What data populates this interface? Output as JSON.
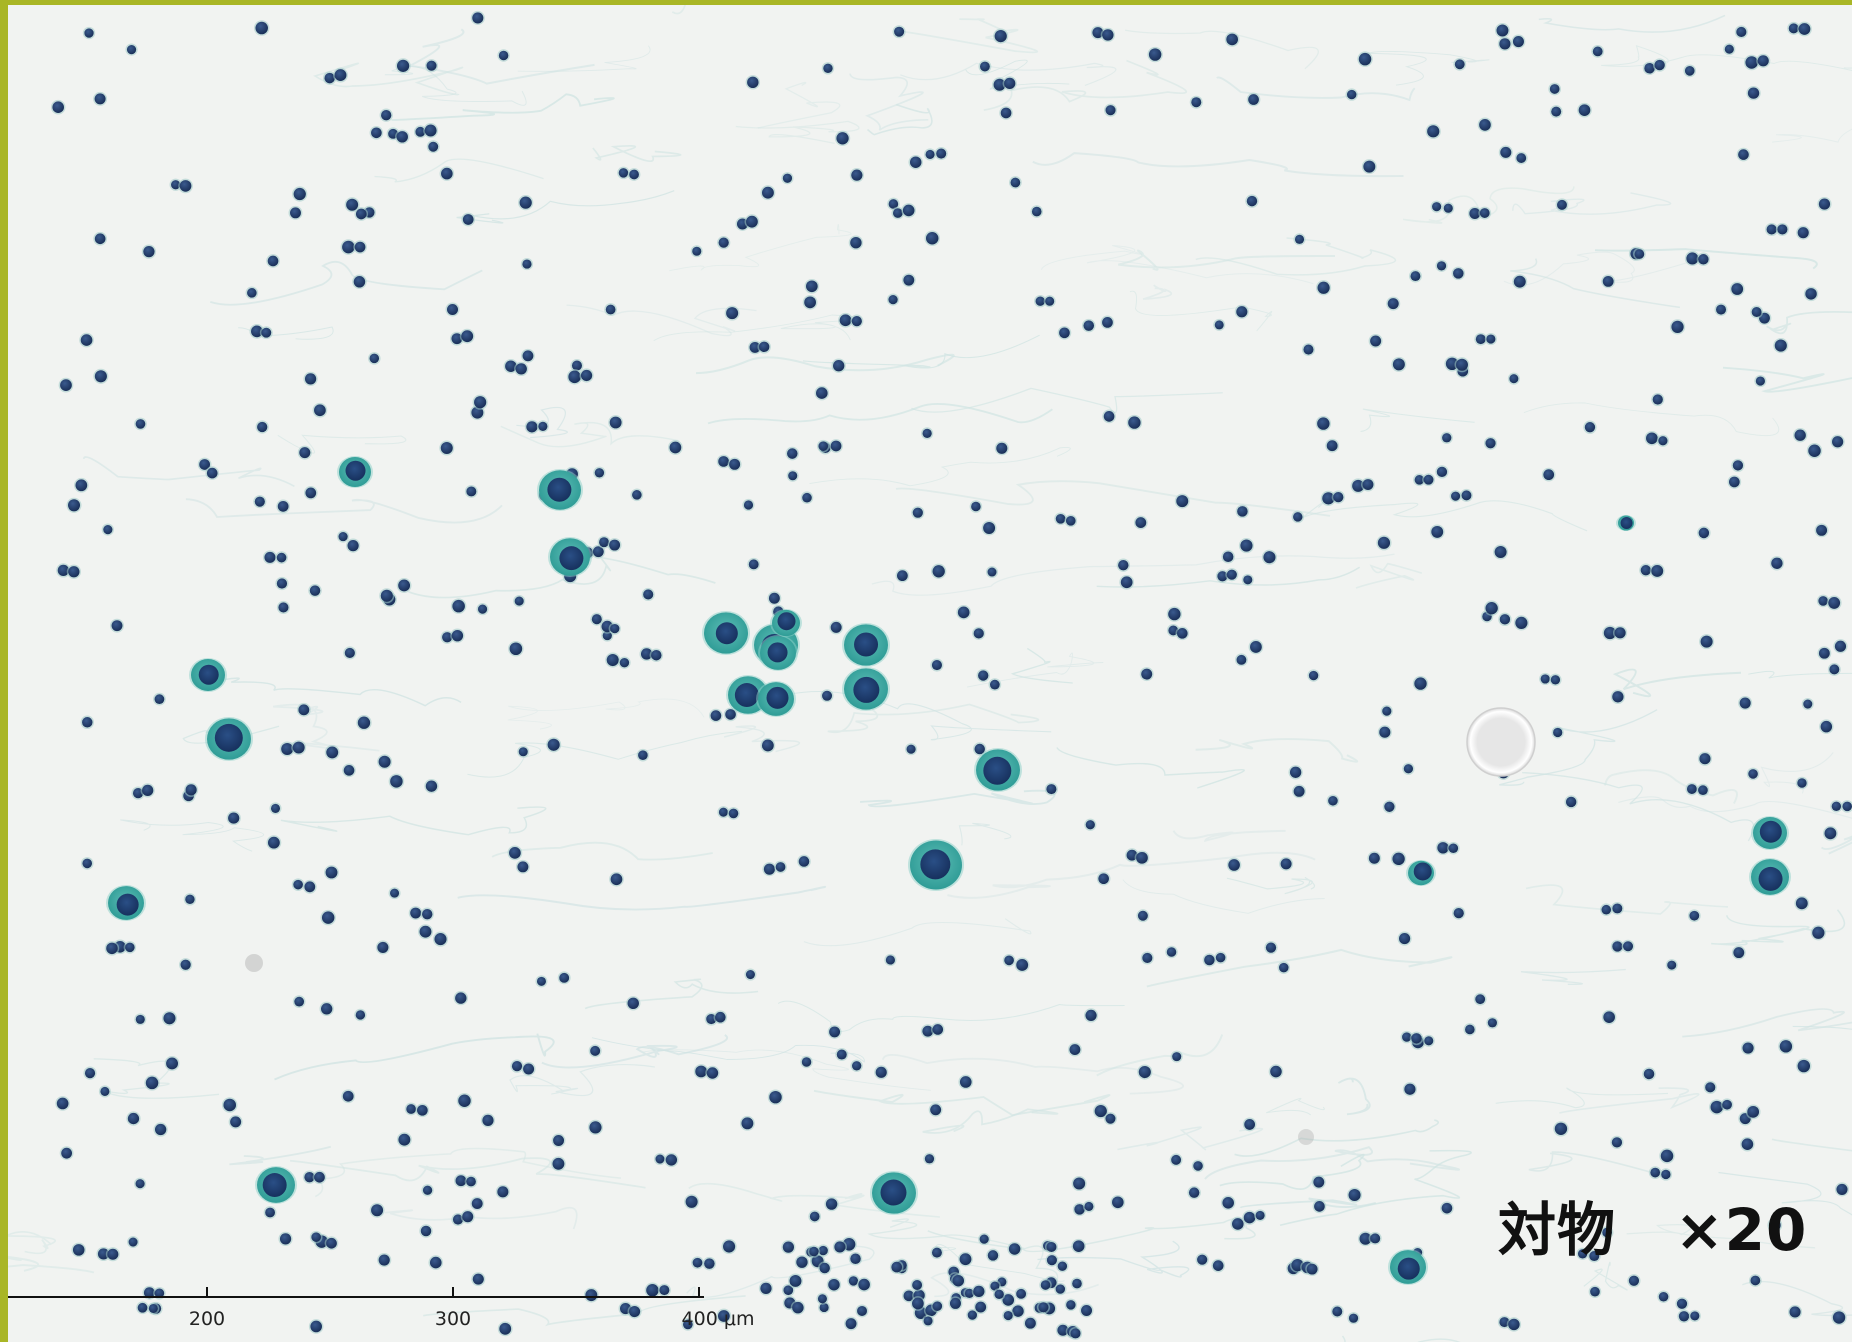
{
  "image": {
    "subject": "Cytology smear micrograph",
    "stain_colors": {
      "background": "#f1f3f1",
      "cytoplasm": "#3aa7a0",
      "nucleus": "#1d3d73",
      "lymphocyte": "#243e70",
      "fibers": "#cfe3e2",
      "border": "#a9b626"
    }
  },
  "magnification": {
    "label": "対物　×20"
  },
  "scale_bar": {
    "labels": [
      "200",
      "300",
      "400 μm"
    ],
    "unit": "μm"
  }
}
